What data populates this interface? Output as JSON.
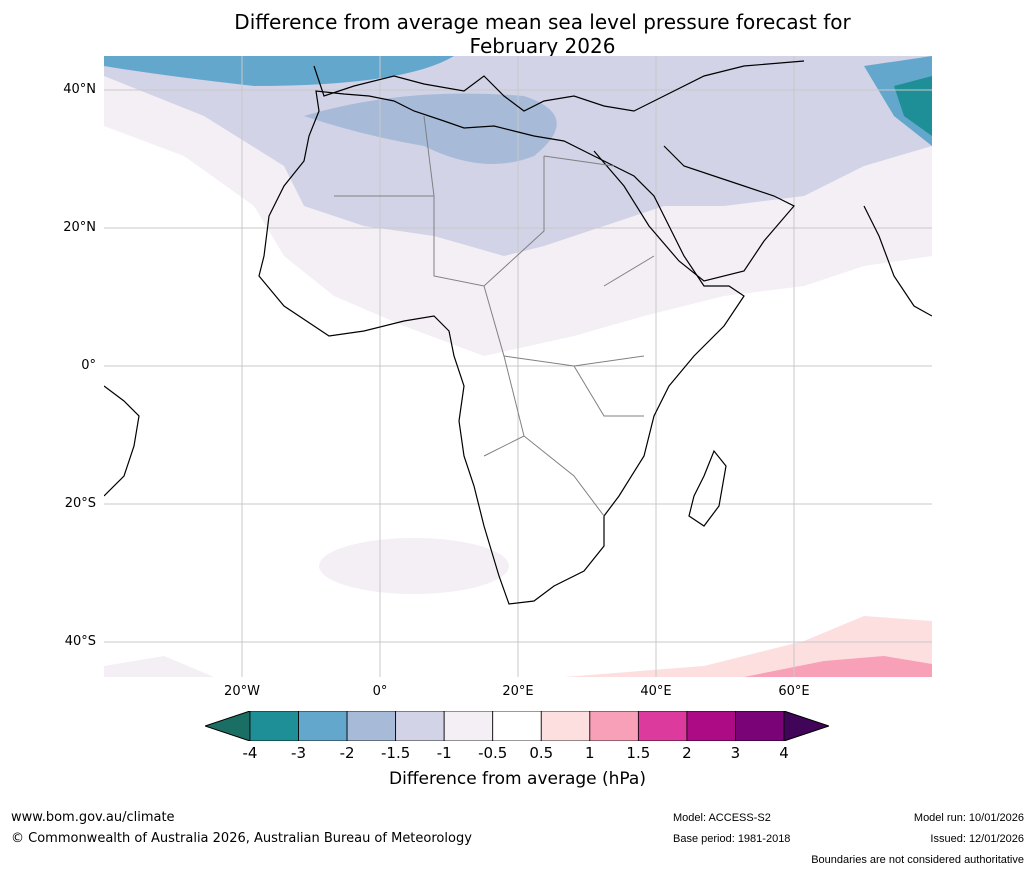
{
  "title": {
    "line1": "Difference from average mean sea level pressure forecast for",
    "line2": "February 2026"
  },
  "map": {
    "lat_labels": [
      "40°N",
      "20°N",
      "0°",
      "20°S",
      "40°S"
    ],
    "lon_labels": [
      "20°W",
      "0°",
      "20°E",
      "40°E",
      "60°E"
    ]
  },
  "colorbar": {
    "ticks": [
      "-4",
      "-3",
      "-2",
      "-1.5",
      "-1",
      "-0.5",
      "0.5",
      "1",
      "1.5",
      "2",
      "3",
      "4"
    ],
    "colors": [
      "#1a6e63",
      "#1f8f97",
      "#64a7cd",
      "#a7bad8",
      "#d2d3e7",
      "#f3eff5",
      "#ffffff",
      "#fddfe0",
      "#f7a0b8",
      "#dc3a9c",
      "#ad0a85",
      "#7a0477",
      "#400459"
    ],
    "label": "Difference from average (hPa)"
  },
  "footer": {
    "url": "www.bom.gov.au/climate",
    "copyright": "© Commonwealth of Australia 2026, Australian Bureau of Meteorology",
    "model": "Model: ACCESS-S2",
    "base_period": "Base period: 1981-2018",
    "model_run": "Model run: 10/01/2026",
    "issued": "Issued: 12/01/2026",
    "disclaimer": "Boundaries are not considered authoritative"
  }
}
